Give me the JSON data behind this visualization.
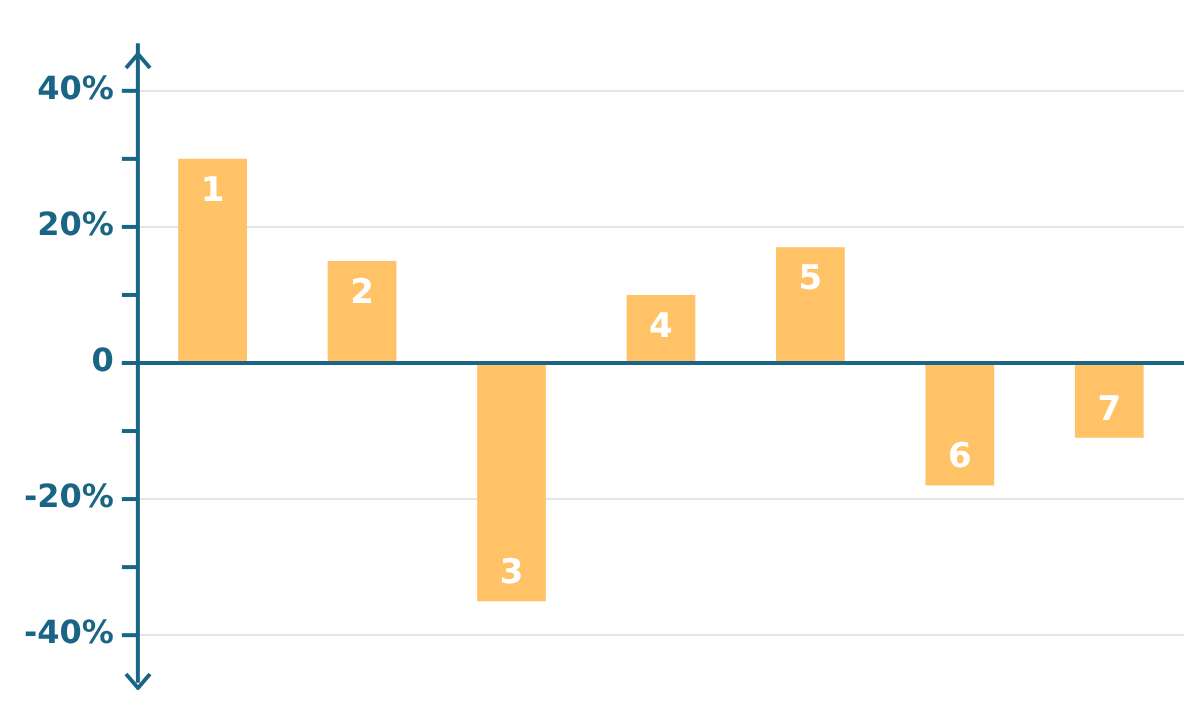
{
  "chart_data": {
    "type": "bar",
    "categories": [
      "1",
      "2",
      "3",
      "4",
      "5",
      "6",
      "7"
    ],
    "values": [
      30,
      15,
      -35,
      10,
      17,
      -18,
      -11
    ],
    "color": "#ffc266",
    "ylim": [
      -47,
      47
    ],
    "yticks": [
      {
        "value": 40,
        "label": "40%"
      },
      {
        "value": 30,
        "label": null
      },
      {
        "value": 20,
        "label": "20%"
      },
      {
        "value": 10,
        "label": null
      },
      0,
      {
        "value": -10,
        "label": null
      },
      {
        "value": -20,
        "label": "-20%"
      },
      {
        "value": -30,
        "label": null
      },
      {
        "value": -40,
        "label": "-40%"
      }
    ],
    "tick_labels": "y",
    "grid": "y",
    "ref_lines": [
      {
        "axis": "y",
        "value": 0,
        "color": "#1a6585"
      }
    ]
  }
}
